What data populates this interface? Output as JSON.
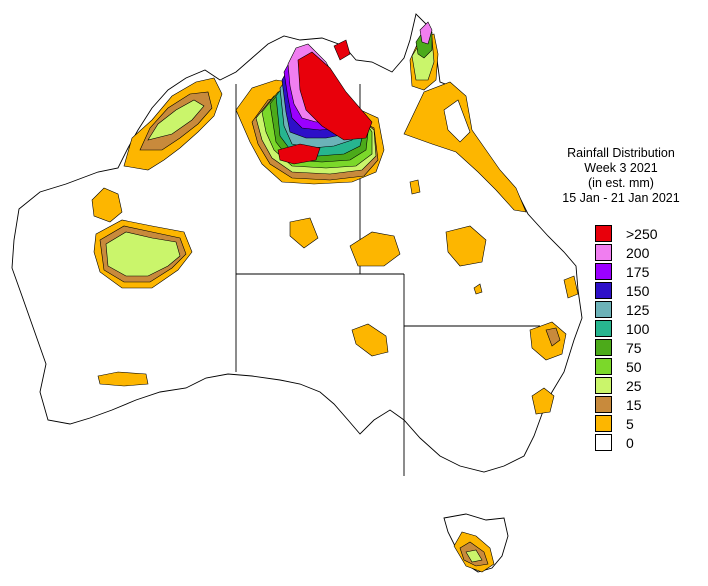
{
  "title": {
    "line1": "Rainfall Distribution",
    "line2": "Week 3 2021",
    "line3": "(in est. mm)",
    "line4": "15 Jan - 21 Jan 2021"
  },
  "legend": [
    {
      "label": ">250",
      "color": "#e8000b"
    },
    {
      "label": "200",
      "color": "#f07ef0"
    },
    {
      "label": "175",
      "color": "#9b00ff"
    },
    {
      "label": "150",
      "color": "#2d10c8"
    },
    {
      "label": "125",
      "color": "#6cb2b8"
    },
    {
      "label": "100",
      "color": "#27b58f"
    },
    {
      "label": "75",
      "color": "#4caa1a"
    },
    {
      "label": "50",
      "color": "#7bd82a"
    },
    {
      "label": "25",
      "color": "#caf56b"
    },
    {
      "label": "15",
      "color": "#c88a3c"
    },
    {
      "label": "5",
      "color": "#fdb600"
    },
    {
      "label": "0",
      "color": "#ffffff"
    }
  ]
}
